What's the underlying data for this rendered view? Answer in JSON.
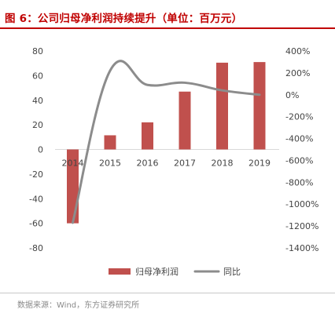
{
  "title": "图 6：公司归母净利润持续提升（单位：百万元）",
  "source": "数据来源：Wind，东方证券研究所",
  "colors": {
    "title": "#c00000",
    "bar": "#c0504d",
    "line": "#8c8c8c"
  },
  "chart_data": {
    "type": "bar",
    "categories": [
      "2014",
      "2015",
      "2016",
      "2017",
      "2018",
      "2019"
    ],
    "series": [
      {
        "name": "归母净利润",
        "type": "bar",
        "axis": "left",
        "values": [
          -60,
          11.5,
          22,
          47,
          70.5,
          71
        ]
      },
      {
        "name": "同比",
        "type": "line",
        "axis": "right",
        "values": [
          -1170,
          220,
          90,
          110,
          40,
          0
        ]
      }
    ],
    "y_left": {
      "lim": [
        -80,
        80
      ],
      "ticks": [
        "80",
        "60",
        "40",
        "20",
        "0",
        "-20",
        "-40",
        "-60",
        "-80"
      ]
    },
    "y_right": {
      "lim": [
        -1400,
        400
      ],
      "ticks": [
        "400%",
        "200%",
        "0%",
        "-200%",
        "-400%",
        "-600%",
        "-800%",
        "-1000%",
        "-1200%",
        "-1400%"
      ]
    },
    "legend": {
      "position": "bottom",
      "items": [
        "归母净利润",
        "同比"
      ]
    },
    "grid": false
  }
}
